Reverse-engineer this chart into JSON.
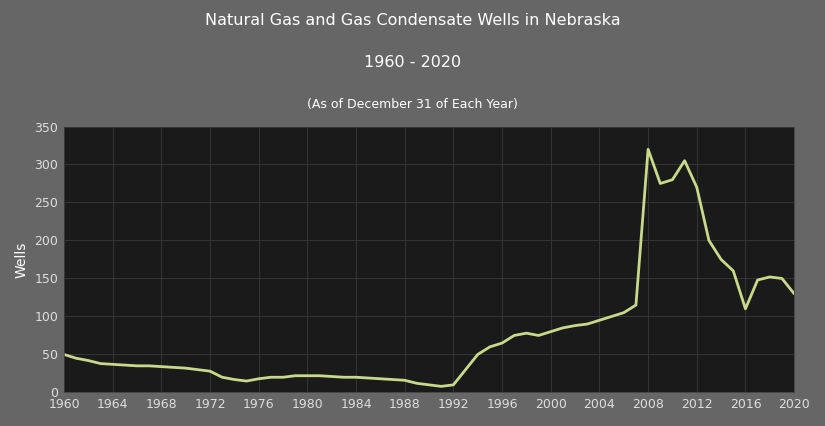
{
  "title_line1": "Natural Gas and Gas Condensate Wells in Nebraska",
  "title_line2": "1960 - 2020",
  "title_line3": "(As of December 31 of Each Year)",
  "ylabel": "Wells",
  "figure_bg_color": "#666666",
  "plot_bg_color": "#1a1a1a",
  "line_color": "#c8d98a",
  "grid_color": "#3a3a3a",
  "text_color": "#ffffff",
  "tick_label_color": "#dddddd",
  "ylim": [
    0,
    350
  ],
  "yticks": [
    0,
    50,
    100,
    150,
    200,
    250,
    300,
    350
  ],
  "xlim": [
    1960,
    2020
  ],
  "xticks": [
    1960,
    1964,
    1968,
    1972,
    1976,
    1980,
    1984,
    1988,
    1992,
    1996,
    2000,
    2004,
    2008,
    2012,
    2016,
    2020
  ],
  "years": [
    1960,
    1961,
    1962,
    1963,
    1964,
    1965,
    1966,
    1967,
    1968,
    1969,
    1970,
    1971,
    1972,
    1973,
    1974,
    1975,
    1976,
    1977,
    1978,
    1979,
    1980,
    1981,
    1982,
    1983,
    1984,
    1985,
    1986,
    1987,
    1988,
    1989,
    1990,
    1991,
    1992,
    1993,
    1994,
    1995,
    1996,
    1997,
    1998,
    1999,
    2000,
    2001,
    2002,
    2003,
    2004,
    2005,
    2006,
    2007,
    2008,
    2009,
    2010,
    2011,
    2012,
    2013,
    2014,
    2015,
    2016,
    2017,
    2018,
    2019,
    2020
  ],
  "values": [
    50,
    45,
    42,
    38,
    37,
    36,
    35,
    35,
    34,
    33,
    32,
    30,
    28,
    20,
    17,
    15,
    18,
    20,
    20,
    22,
    22,
    22,
    21,
    20,
    20,
    19,
    18,
    17,
    16,
    12,
    10,
    8,
    10,
    30,
    50,
    60,
    65,
    75,
    78,
    75,
    80,
    85,
    88,
    90,
    95,
    100,
    105,
    115,
    320,
    275,
    280,
    305,
    270,
    200,
    175,
    160,
    110,
    148,
    152,
    150,
    130
  ]
}
